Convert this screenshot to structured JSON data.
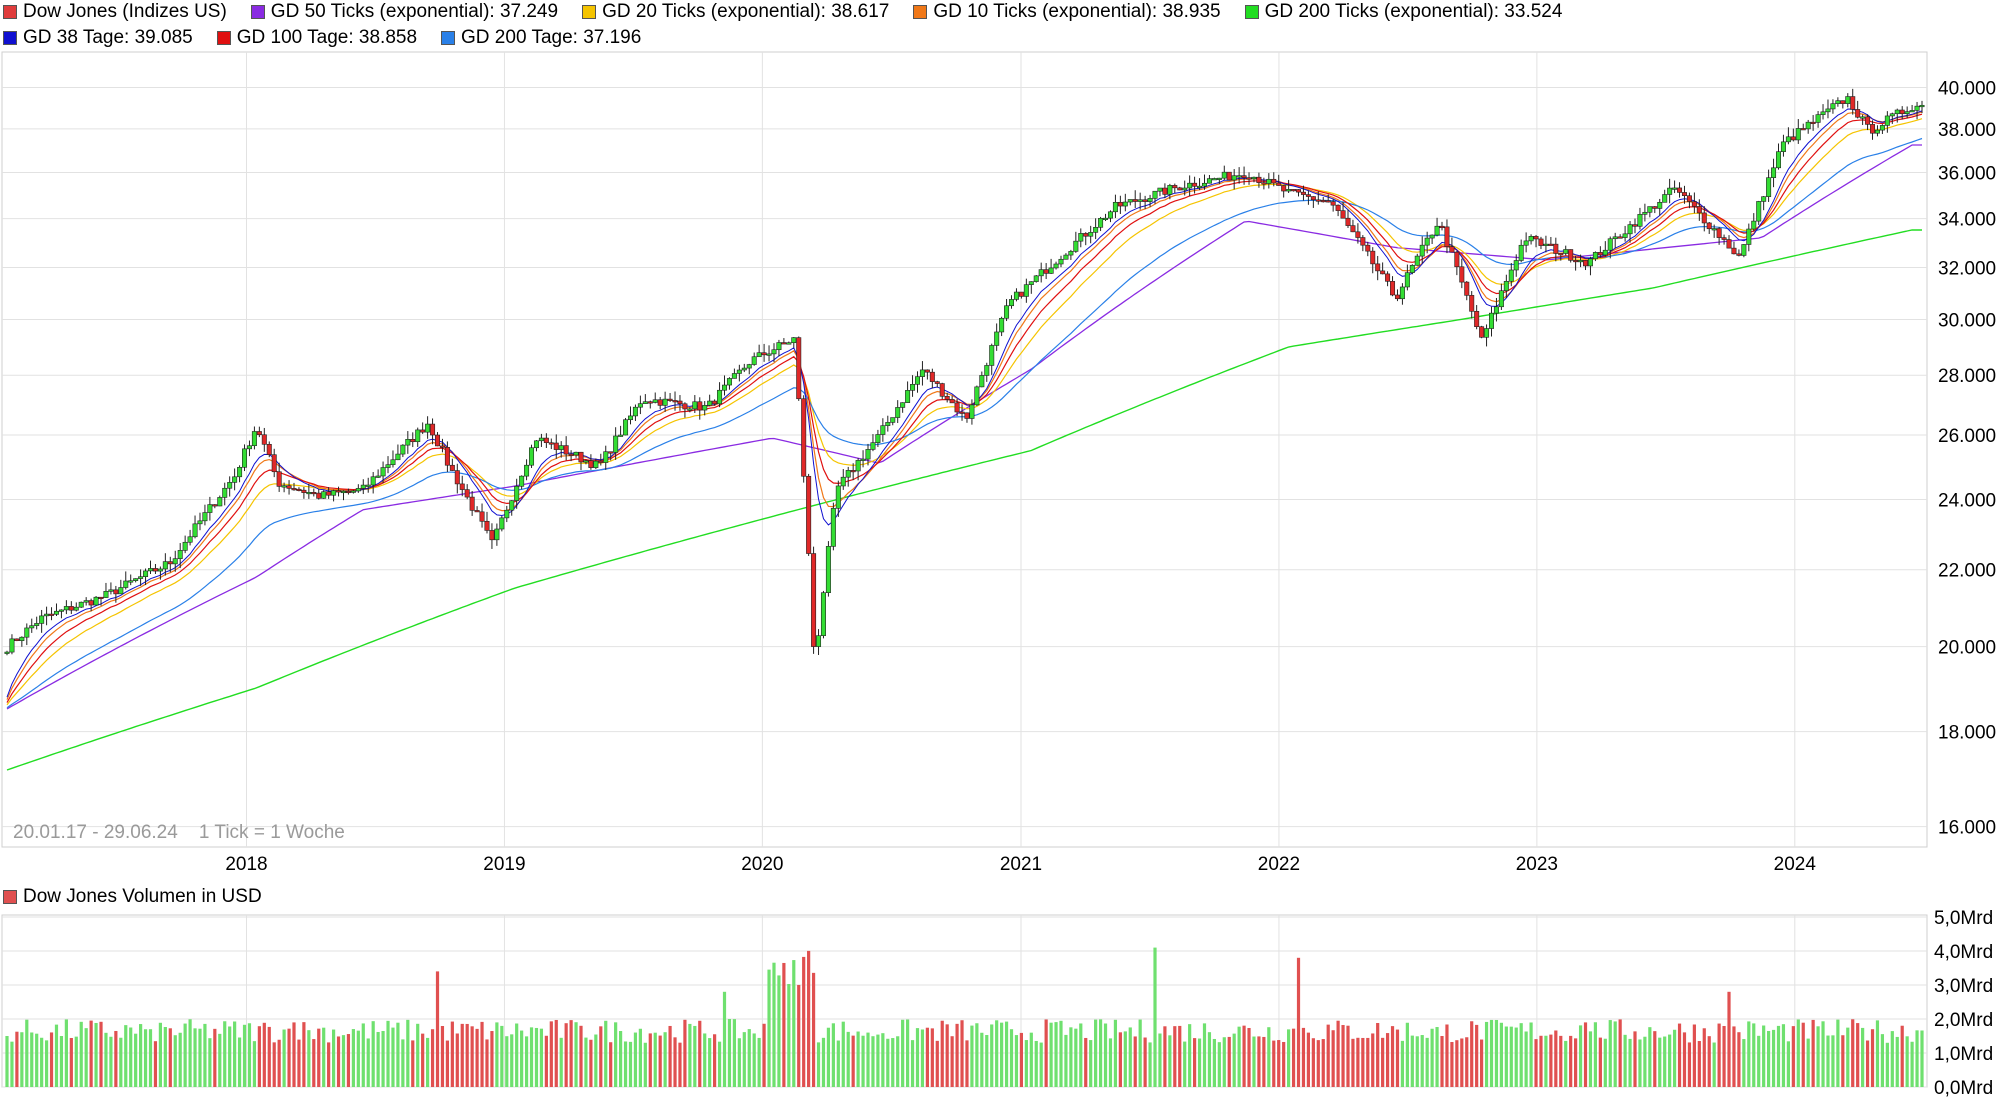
{
  "legend": [
    {
      "label": "Dow Jones (Indizes US)",
      "color": "#e03c3c"
    },
    {
      "label": "GD 50 Ticks (exponential): 37.249",
      "color": "#8a2be2"
    },
    {
      "label": "GD 20 Ticks (exponential): 38.617",
      "color": "#f5c400"
    },
    {
      "label": "GD 10 Ticks (exponential): 38.935",
      "color": "#f07818"
    },
    {
      "label": "GD 200 Ticks (exponential): 33.524",
      "color": "#22dd22"
    },
    {
      "label": "GD 38 Tage: 39.085",
      "color": "#1010d0"
    },
    {
      "label": "GD 100 Tage: 38.858",
      "color": "#e01010"
    },
    {
      "label": "GD 200 Tage: 37.196",
      "color": "#2a80e8"
    }
  ],
  "range_note": "20.01.17 - 29.06.24    1 Tick = 1 Woche",
  "volume_legend": {
    "label": "Dow Jones Volumen in USD",
    "color": "#e05050"
  },
  "chart_data": [
    {
      "type": "line",
      "title": "",
      "x_range": [
        "2017-01-20",
        "2024-06-29"
      ],
      "x_ticks": [
        "2018",
        "2019",
        "2020",
        "2021",
        "2022",
        "2023",
        "2024"
      ],
      "y_ticks": [
        "16.000",
        "18.000",
        "20.000",
        "22.000",
        "24.000",
        "26.000",
        "28.000",
        "30.000",
        "32.000",
        "34.000",
        "36.000",
        "38.000",
        "40.000"
      ],
      "ylim": [
        15600,
        41800
      ],
      "y_scale": "log",
      "grid": true,
      "series_close": {
        "name": "Dow Jones (Indizes US)",
        "points": [
          [
            "2017-01",
            19800
          ],
          [
            "2017-03",
            20700
          ],
          [
            "2017-06",
            21300
          ],
          [
            "2017-09",
            22200
          ],
          [
            "2017-12",
            24700
          ],
          [
            "2018-01",
            26300
          ],
          [
            "2018-02",
            24500
          ],
          [
            "2018-04",
            24100
          ],
          [
            "2018-06",
            24300
          ],
          [
            "2018-09",
            26400
          ],
          [
            "2018-10",
            25000
          ],
          [
            "2018-12",
            22700
          ],
          [
            "2019-02",
            25900
          ],
          [
            "2019-05",
            25000
          ],
          [
            "2019-07",
            27200
          ],
          [
            "2019-10",
            26900
          ],
          [
            "2019-12",
            28500
          ],
          [
            "2020-02",
            29300
          ],
          [
            "2020-03",
            19500
          ],
          [
            "2020-04",
            24300
          ],
          [
            "2020-06",
            26000
          ],
          [
            "2020-08",
            28200
          ],
          [
            "2020-10",
            26500
          ],
          [
            "2020-12",
            30600
          ],
          [
            "2021-03",
            32900
          ],
          [
            "2021-05",
            34500
          ],
          [
            "2021-08",
            35400
          ],
          [
            "2021-11",
            36000
          ],
          [
            "2022-01",
            35100
          ],
          [
            "2022-03",
            34700
          ],
          [
            "2022-06",
            30800
          ],
          [
            "2022-08",
            33900
          ],
          [
            "2022-10",
            29200
          ],
          [
            "2022-12",
            33200
          ],
          [
            "2023-03",
            32200
          ],
          [
            "2023-07",
            35300
          ],
          [
            "2023-10",
            32400
          ],
          [
            "2023-12",
            37300
          ],
          [
            "2024-03",
            39500
          ],
          [
            "2024-04",
            37900
          ],
          [
            "2024-06",
            39100
          ]
        ]
      },
      "series_ma": [
        {
          "name": "GD 200 Ticks (exponential)",
          "points": [
            [
              "2017-01",
              17100
            ],
            [
              "2018-01",
              19000
            ],
            [
              "2019-01",
              21500
            ],
            [
              "2020-01",
              23500
            ],
            [
              "2021-01",
              25500
            ],
            [
              "2022-01",
              29000
            ],
            [
              "2022-09",
              30000
            ],
            [
              "2023-06",
              31200
            ],
            [
              "2024-06",
              33524
            ]
          ]
        },
        {
          "name": "GD 50 Ticks (exponential)",
          "points": [
            [
              "2017-01",
              18400
            ],
            [
              "2018-01",
              21800
            ],
            [
              "2018-06",
              23700
            ],
            [
              "2019-01",
              24400
            ],
            [
              "2020-01",
              25900
            ],
            [
              "2020-06",
              25100
            ],
            [
              "2021-01",
              28200
            ],
            [
              "2021-11",
              33900
            ],
            [
              "2022-06",
              32800
            ],
            [
              "2023-01",
              32300
            ],
            [
              "2023-11",
              33200
            ],
            [
              "2024-06",
              37249
            ]
          ]
        }
      ]
    },
    {
      "type": "bar",
      "title": "",
      "x_range": [
        "2017-01-20",
        "2024-06-29"
      ],
      "y_ticks": [
        "0,0Mrd",
        "1,0Mrd",
        "2,0Mrd",
        "3,0Mrd",
        "4,0Mrd",
        "5,0Mrd"
      ],
      "ylim": [
        0,
        5.0
      ],
      "unit": "Mrd USD",
      "values_sample": [
        1.5,
        1.7,
        1.9,
        3.4,
        1.8,
        2.8,
        1.6,
        1.7,
        4.1,
        3.8,
        1.5,
        1.9,
        2.8,
        1.7,
        1.6,
        1.8,
        2.0
      ]
    }
  ]
}
